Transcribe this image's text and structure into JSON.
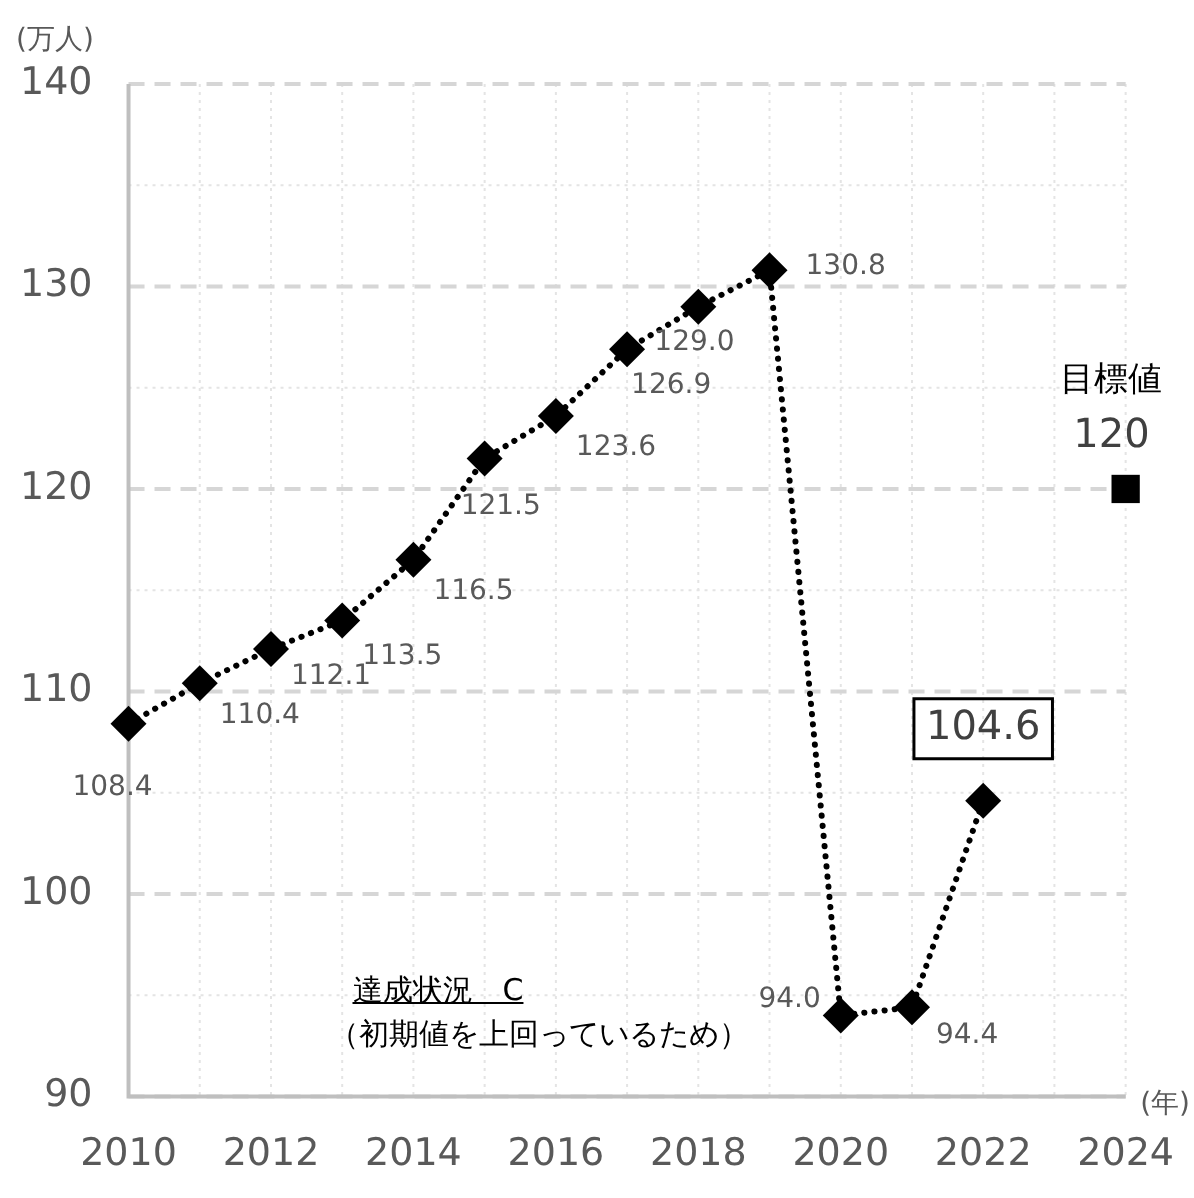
{
  "chart_data": {
    "type": "line",
    "xlabel": "(年)",
    "ylabel": "(万人)",
    "x": [
      2010,
      2011,
      2012,
      2013,
      2014,
      2015,
      2016,
      2017,
      2018,
      2019,
      2020,
      2021,
      2022
    ],
    "series": [
      {
        "color": "#000000",
        "marker": "diamond",
        "line_style": "dotted",
        "values": [
          108.4,
          110.4,
          112.1,
          113.5,
          116.5,
          121.5,
          123.6,
          126.9,
          129.0,
          130.8,
          94.0,
          94.4,
          104.6
        ],
        "value_labels": [
          "108.4",
          "110.4",
          "112.1",
          "113.5",
          "116.5",
          "121.5",
          "123.6",
          "126.9",
          "129.0",
          "130.8",
          "94.0",
          "94.4",
          "104.6"
        ]
      },
      {
        "type": "scatter",
        "name": "目標値",
        "color": "#000000",
        "marker": "square",
        "x": [
          2024
        ],
        "values": [
          120
        ],
        "value_labels": [
          "120"
        ]
      }
    ],
    "xlim": [
      2010,
      2024
    ],
    "xticks": [
      2010,
      {
        "value": 2011,
        "label": null
      },
      2012,
      {
        "value": 2013,
        "label": null
      },
      2014,
      {
        "value": 2015,
        "label": null
      },
      2016,
      {
        "value": 2017,
        "label": null
      },
      2018,
      {
        "value": 2019,
        "label": null
      },
      2020,
      {
        "value": 2021,
        "label": null
      },
      2022,
      {
        "value": 2023,
        "label": null
      },
      2024
    ],
    "ylim": [
      90,
      140
    ],
    "yticks": [
      90,
      {
        "value": 95,
        "label": null
      },
      100,
      {
        "value": 105,
        "label": null
      },
      110,
      {
        "value": 115,
        "label": null
      },
      120,
      {
        "value": 125,
        "label": null
      },
      130,
      {
        "value": 135,
        "label": null
      },
      140
    ],
    "grid": true,
    "legend": false,
    "annotations": [
      "達成状況　C",
      "（初期値を上回っているため）"
    ]
  }
}
